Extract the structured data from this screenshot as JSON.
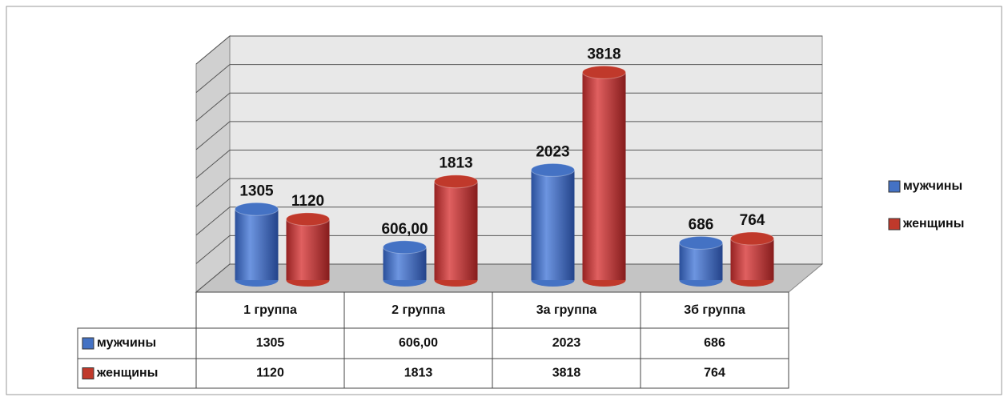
{
  "chart_data": {
    "type": "bar",
    "categories": [
      "1 группа",
      "2 группа",
      "3а группа",
      "3б группа"
    ],
    "series": [
      {
        "name": "мужчины",
        "color": "#4472c4",
        "values": [
          1305,
          606,
          2023,
          686
        ],
        "value_labels": [
          "1305",
          "606,00",
          "2023",
          "686"
        ]
      },
      {
        "name": "женщины",
        "color": "#c0392b",
        "values": [
          1120,
          1813,
          3818,
          764
        ],
        "value_labels": [
          "1120",
          "1813",
          "3818",
          "764"
        ]
      }
    ],
    "ylim": [
      0,
      4000
    ],
    "yticks": [
      0,
      500,
      1000,
      1500,
      2000,
      2500,
      3000,
      3500,
      4000
    ],
    "grid": true
  }
}
